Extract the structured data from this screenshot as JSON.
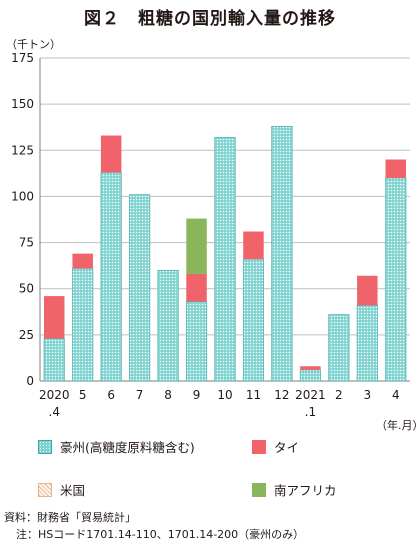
{
  "title": "図２　粗糖の国別輸入量の推移",
  "unit_y": "（千トン）",
  "unit_x": "（年.月）",
  "source": "資料：財務省「貿易統計」",
  "note": "注：HSコード1701.14-110、1701.14-200（豪州のみ）",
  "legend": {
    "aus": "豪州(高糖度原料糖含む)",
    "thai": "タイ",
    "us": "米国",
    "sa": "南アフリカ"
  },
  "colors": {
    "aus": "#7fd3d1",
    "aus_dot": "#ffffff",
    "aus_border": "#3fa9a6",
    "thai": "#f0636a",
    "us": "#f3c8a6",
    "sa": "#8ab65b",
    "grid": "#bfbfbf"
  },
  "chart_data": {
    "type": "bar",
    "stacked": true,
    "ylim": [
      0,
      175
    ],
    "yticks": [
      0,
      25,
      50,
      75,
      100,
      125,
      150,
      175
    ],
    "categories": [
      "2020\n.4",
      "5",
      "6",
      "7",
      "8",
      "9",
      "10",
      "11",
      "12",
      "2021\n.1",
      "2",
      "3",
      "4"
    ],
    "series": [
      {
        "name": "豪州(高糖度原料糖含む)",
        "key": "aus",
        "values": [
          23,
          61,
          113,
          101,
          60,
          43,
          132,
          66,
          138,
          6,
          36,
          41,
          110
        ]
      },
      {
        "name": "タイ",
        "key": "thai",
        "values": [
          23,
          8,
          20,
          0,
          0,
          15,
          0,
          15,
          0,
          2,
          0,
          16,
          10
        ]
      },
      {
        "name": "米国",
        "key": "us",
        "values": [
          0,
          0,
          0,
          0,
          0,
          0,
          0,
          0,
          0,
          0,
          0,
          0,
          0
        ]
      },
      {
        "name": "南アフリカ",
        "key": "sa",
        "values": [
          0,
          0,
          0,
          0,
          0,
          30,
          0,
          0,
          0,
          0,
          0,
          0,
          0
        ]
      }
    ],
    "grid": true,
    "legend_position": "bottom"
  }
}
